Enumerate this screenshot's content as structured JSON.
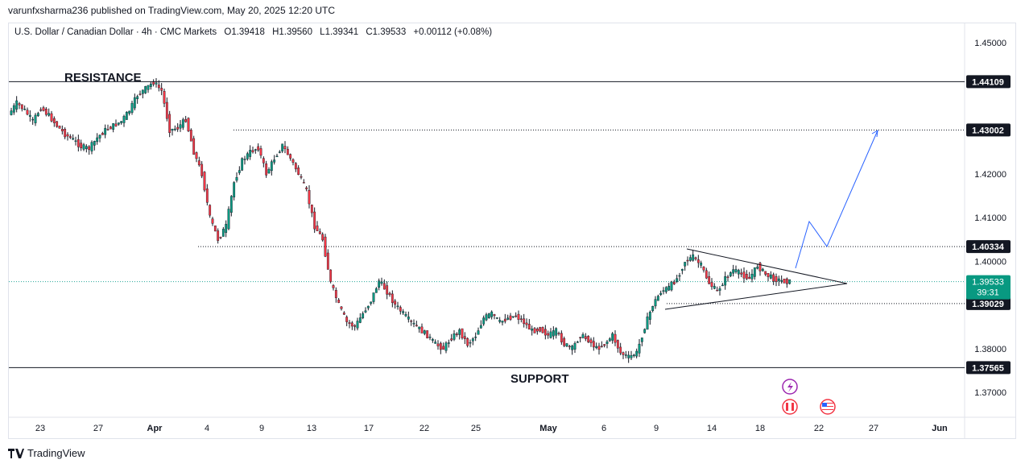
{
  "header": {
    "published": "varunfxsharma236 published on TradingView.com, May 20, 2025 12:20 UTC"
  },
  "symbol": {
    "name": "U.S. Dollar / Canadian Dollar · 4h · CMC Markets",
    "open": "O1.39418",
    "high": "H1.39560",
    "low": "L1.39341",
    "close": "C1.39533",
    "change": "+0.00112 (+0.08%)"
  },
  "footer": {
    "brand": "TradingView"
  },
  "colors": {
    "up": "#089981",
    "down": "#f23645",
    "price_line": "#26a69a",
    "projection": "#2962ff",
    "line": "#131722"
  },
  "chart_data": {
    "type": "candlestick",
    "title": "U.S. Dollar / Canadian Dollar · 4h · CMC Markets",
    "ylim": [
      1.365,
      1.455
    ],
    "y_ticks": [
      "1.45000",
      "1.42000",
      "1.41000",
      "1.40000",
      "1.38000",
      "1.37000"
    ],
    "x_ticks": [
      "23",
      "27",
      "Apr",
      "4",
      "9",
      "13",
      "17",
      "22",
      "25",
      "May",
      "6",
      "9",
      "14",
      "18",
      "22",
      "27",
      "Jun"
    ],
    "levels": [
      {
        "label": "1.44109",
        "value": 1.44109,
        "style": "solid"
      },
      {
        "label": "1.43002",
        "value": 1.43002,
        "style": "dotted"
      },
      {
        "label": "1.40334",
        "value": 1.40334,
        "style": "dotted"
      },
      {
        "label": "1.39029",
        "value": 1.39029,
        "style": "dotted"
      },
      {
        "label": "1.37565",
        "value": 1.37565,
        "style": "solid"
      }
    ],
    "current_price": {
      "label": "1.39533",
      "countdown": "39:31",
      "value": 1.39533
    },
    "annotations": {
      "resistance": "RESISTANCE",
      "support": "SUPPORT"
    },
    "price_path": [
      1.4335,
      1.4362,
      1.4345,
      1.432,
      1.4351,
      1.4333,
      1.431,
      1.429,
      1.4278,
      1.4262,
      1.4258,
      1.4282,
      1.43,
      1.431,
      1.432,
      1.4345,
      1.438,
      1.4395,
      1.441,
      1.439,
      1.43,
      1.4305,
      1.4325,
      1.425,
      1.42,
      1.41,
      1.405,
      1.408,
      1.418,
      1.423,
      1.425,
      1.426,
      1.42,
      1.4235,
      1.4265,
      1.4235,
      1.42,
      1.416,
      1.408,
      1.405,
      1.395,
      1.39,
      1.386,
      1.385,
      1.388,
      1.391,
      1.3955,
      1.393,
      1.39,
      1.388,
      1.386,
      1.3845,
      1.383,
      1.381,
      1.38,
      1.3825,
      1.384,
      1.381,
      1.383,
      1.387,
      1.388,
      1.386,
      1.387,
      1.3875,
      1.386,
      1.384,
      1.3845,
      1.383,
      1.384,
      1.381,
      1.38,
      1.383,
      1.382,
      1.38,
      1.381,
      1.383,
      1.379,
      1.378,
      1.379,
      1.385,
      1.39,
      1.393,
      1.394,
      1.396,
      1.4,
      1.401,
      1.399,
      1.395,
      1.393,
      1.396,
      1.398,
      1.397,
      1.396,
      1.399,
      1.397,
      1.396,
      1.3955,
      1.3953
    ],
    "triangle": {
      "upper": [
        [
          "May 11",
          1.403
        ],
        [
          "May 23",
          1.395
        ]
      ],
      "lower": [
        [
          "May 9",
          1.3895
        ],
        [
          "May 23",
          1.395
        ]
      ]
    },
    "projection": [
      [
        "May 19",
        1.3975
      ],
      [
        "May 20",
        1.409
      ],
      [
        "May 22",
        1.4035
      ],
      [
        "May 24",
        1.43
      ]
    ]
  }
}
